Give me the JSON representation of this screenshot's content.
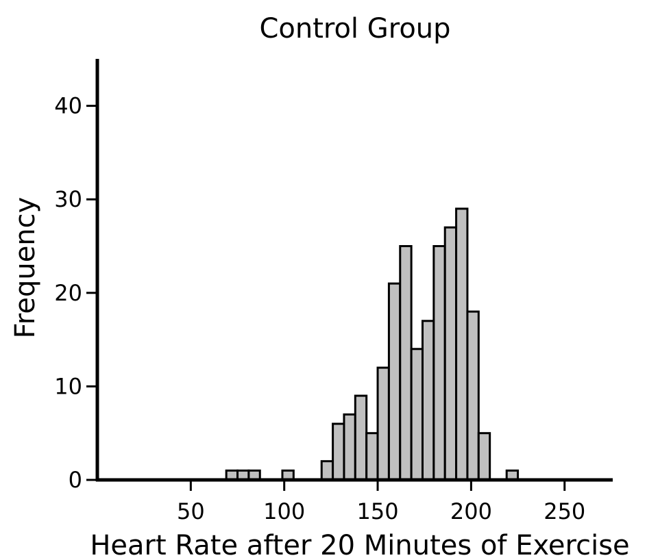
{
  "chart_data": {
    "type": "bar",
    "subtype": "histogram",
    "title": "Control Group",
    "xlabel": "Heart Rate after 20 Minutes of Exercise",
    "ylabel": "Frequency",
    "xlim": [
      0,
      275
    ],
    "ylim": [
      0,
      45
    ],
    "x_ticks": [
      50,
      100,
      150,
      200,
      250
    ],
    "y_ticks": [
      0,
      10,
      20,
      30,
      40
    ],
    "bin_width": 6,
    "bins": [
      {
        "x_start": 69,
        "count": 1
      },
      {
        "x_start": 75,
        "count": 1
      },
      {
        "x_start": 81,
        "count": 1
      },
      {
        "x_start": 99,
        "count": 1
      },
      {
        "x_start": 120,
        "count": 2
      },
      {
        "x_start": 126,
        "count": 6
      },
      {
        "x_start": 132,
        "count": 7
      },
      {
        "x_start": 138,
        "count": 9
      },
      {
        "x_start": 144,
        "count": 5
      },
      {
        "x_start": 150,
        "count": 12
      },
      {
        "x_start": 156,
        "count": 21
      },
      {
        "x_start": 162,
        "count": 25
      },
      {
        "x_start": 168,
        "count": 14
      },
      {
        "x_start": 174,
        "count": 17
      },
      {
        "x_start": 180,
        "count": 25
      },
      {
        "x_start": 186,
        "count": 27
      },
      {
        "x_start": 192,
        "count": 29
      },
      {
        "x_start": 198,
        "count": 18
      },
      {
        "x_start": 204,
        "count": 5
      },
      {
        "x_start": 219,
        "count": 1
      }
    ],
    "bar_color": "#c0c0c0",
    "edge_color": "#000000",
    "grid": false,
    "legend": "none"
  }
}
